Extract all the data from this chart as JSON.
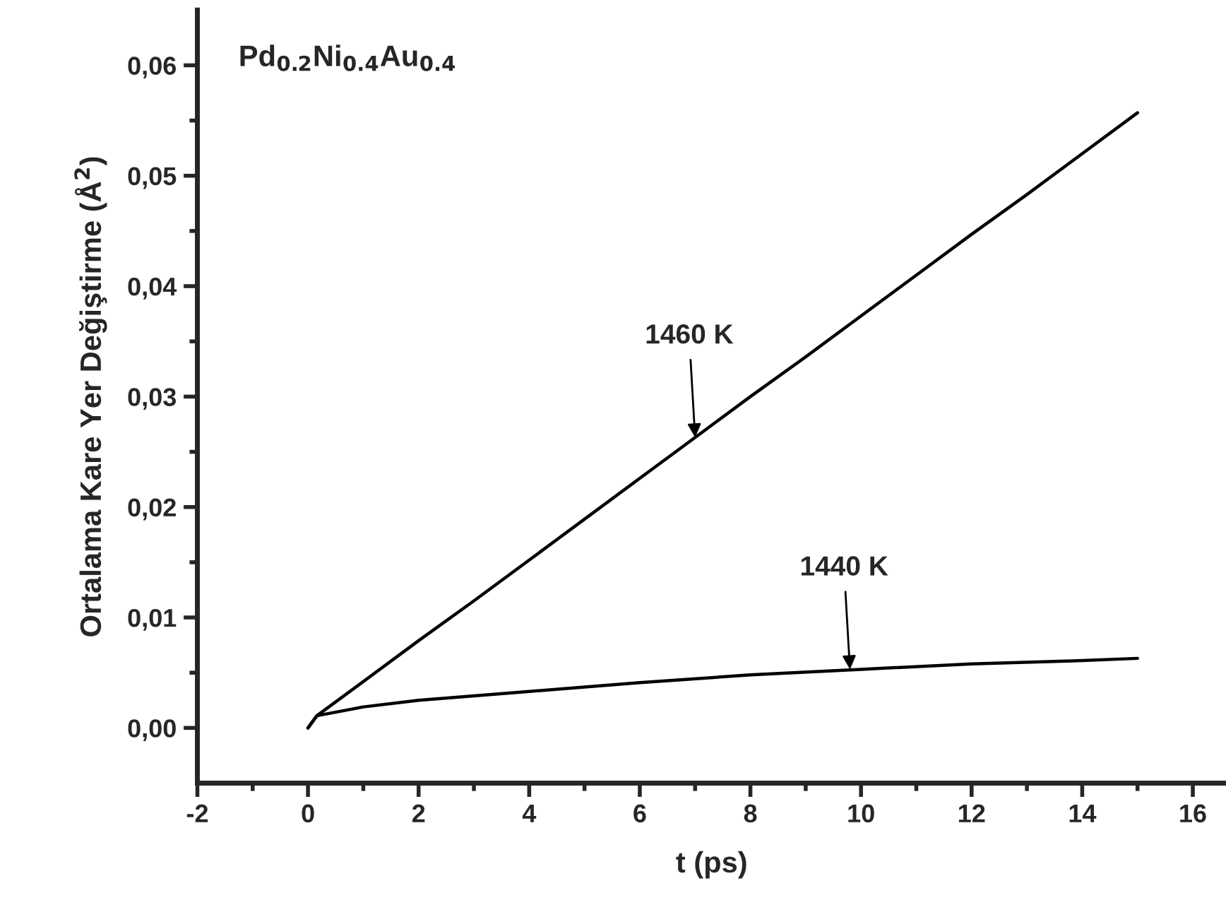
{
  "chart_data": {
    "type": "line",
    "title": "Pd$_{0.2}$Ni$_{0.4}$Au$_{0.4}$",
    "xlabel": "t (ps)",
    "ylabel": "Ortalama Kare Yer Değiştirme (Å$^{2}$)",
    "series": [
      {
        "color": "#000000",
        "x": [
          0,
          0.16,
          1,
          2,
          3,
          4,
          5,
          6,
          7,
          8,
          9,
          10,
          11,
          12,
          13,
          14,
          15
        ],
        "values": [
          0,
          0.0011,
          0.0042,
          0.0079,
          0.0115,
          0.0152,
          0.0189,
          0.0226,
          0.0263,
          0.03,
          0.0336,
          0.0373,
          0.041,
          0.0447,
          0.0483,
          0.052,
          0.0557
        ]
      },
      {
        "color": "#000000",
        "x": [
          0,
          0.16,
          1,
          2,
          4,
          6,
          8,
          10,
          12,
          14,
          15
        ],
        "values": [
          0,
          0.0011,
          0.0019,
          0.0025,
          0.0033,
          0.0041,
          0.0048,
          0.0053,
          0.0058,
          0.0061,
          0.0063
        ]
      }
    ],
    "annotations": [
      {
        "text": "1460 K",
        "x": 7,
        "y": 0.0263
      },
      {
        "text": "1440 K",
        "x": 9.8,
        "y": 0.0053
      }
    ],
    "xlim": [
      -2,
      16.6
    ],
    "ylim": [
      -0.005,
      0.065
    ],
    "xticks": [
      -2,
      {
        "value": -1,
        "label": null
      },
      0,
      {
        "value": 1,
        "label": null
      },
      2,
      {
        "value": 3,
        "label": null
      },
      4,
      {
        "value": 5,
        "label": null
      },
      6,
      {
        "value": 7,
        "label": null
      },
      8,
      {
        "value": 9,
        "label": null
      },
      10,
      {
        "value": 11,
        "label": null
      },
      12,
      {
        "value": 13,
        "label": null
      },
      14,
      {
        "value": 15,
        "label": null
      },
      16
    ],
    "yticks": [
      {
        "value": 0,
        "label": "0,00"
      },
      {
        "value": 0.005,
        "label": null
      },
      {
        "value": 0.01,
        "label": "0,01"
      },
      {
        "value": 0.015,
        "label": null
      },
      {
        "value": 0.02,
        "label": "0,02"
      },
      {
        "value": 0.025,
        "label": null
      },
      {
        "value": 0.03,
        "label": "0,03"
      },
      {
        "value": 0.035,
        "label": null
      },
      {
        "value": 0.04,
        "label": "0,04"
      },
      {
        "value": 0.045,
        "label": null
      },
      {
        "value": 0.05,
        "label": "0,05"
      },
      {
        "value": 0.055,
        "label": null
      },
      {
        "value": 0.06,
        "label": "0,06"
      }
    ],
    "grid": false,
    "legend": false,
    "marker": "none",
    "line_style": "solid"
  }
}
